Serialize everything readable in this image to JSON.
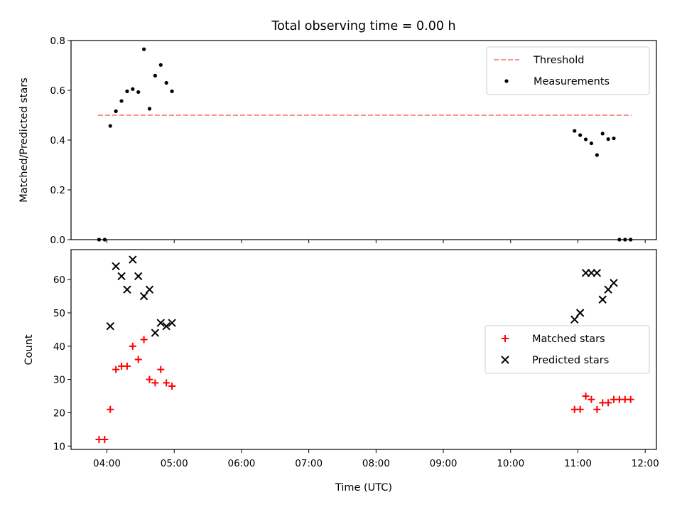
{
  "chart_data": [
    {
      "type": "scatter",
      "title": "Total observing time = 0.00 h",
      "ylabel": "Matched/Predicted stars",
      "xlim": [
        "03:28",
        "12:10"
      ],
      "ylim": [
        0,
        0.8
      ],
      "yticks": [
        0.0,
        0.2,
        0.4,
        0.6,
        0.8
      ],
      "ytick_labels": [
        "0.0",
        "0.2",
        "0.4",
        "0.6",
        "0.8"
      ],
      "legend_position": "top-right",
      "threshold": {
        "name": "Threshold",
        "value": 0.5,
        "x_range": [
          "03:52",
          "11:48"
        ],
        "color": "#ff8080",
        "style": "dashed"
      },
      "series": [
        {
          "name": "Measurements",
          "color": "#000000",
          "marker": "dot",
          "points": [
            [
              "03:53",
              0.0
            ],
            [
              "03:58",
              0.0
            ],
            [
              "04:03",
              0.457
            ],
            [
              "04:08",
              0.516
            ],
            [
              "04:13",
              0.557
            ],
            [
              "04:18",
              0.596
            ],
            [
              "04:23",
              0.605
            ],
            [
              "04:28",
              0.593
            ],
            [
              "04:33",
              0.765
            ],
            [
              "04:38",
              0.526
            ],
            [
              "04:43",
              0.659
            ],
            [
              "04:48",
              0.702
            ],
            [
              "04:53",
              0.63
            ],
            [
              "04:58",
              0.596
            ],
            [
              "10:57",
              0.437
            ],
            [
              "11:02",
              0.42
            ],
            [
              "11:07",
              0.403
            ],
            [
              "11:12",
              0.387
            ],
            [
              "11:17",
              0.34
            ],
            [
              "11:22",
              0.426
            ],
            [
              "11:27",
              0.404
            ],
            [
              "11:32",
              0.407
            ],
            [
              "11:37",
              0.0
            ],
            [
              "11:42",
              0.0
            ],
            [
              "11:47",
              0.0
            ]
          ]
        }
      ]
    },
    {
      "type": "scatter",
      "xlabel": "Time (UTC)",
      "ylabel": "Count",
      "xlim": [
        "03:28",
        "12:10"
      ],
      "ylim": [
        9,
        69
      ],
      "yticks": [
        10,
        20,
        30,
        40,
        50,
        60
      ],
      "ytick_labels": [
        "10",
        "20",
        "30",
        "40",
        "50",
        "60"
      ],
      "xticks": [
        "04:00",
        "05:00",
        "06:00",
        "07:00",
        "08:00",
        "09:00",
        "10:00",
        "11:00",
        "12:00"
      ],
      "legend_position": "center-right",
      "series": [
        {
          "name": "Matched stars",
          "color": "#ff0000",
          "marker": "plus",
          "points": [
            [
              "03:53",
              12
            ],
            [
              "03:58",
              12
            ],
            [
              "04:03",
              21
            ],
            [
              "04:08",
              33
            ],
            [
              "04:13",
              34
            ],
            [
              "04:18",
              34
            ],
            [
              "04:23",
              40
            ],
            [
              "04:28",
              36
            ],
            [
              "04:33",
              42
            ],
            [
              "04:38",
              30
            ],
            [
              "04:43",
              29
            ],
            [
              "04:48",
              33
            ],
            [
              "04:53",
              29
            ],
            [
              "04:58",
              28
            ],
            [
              "10:57",
              21
            ],
            [
              "11:02",
              21
            ],
            [
              "11:07",
              25
            ],
            [
              "11:12",
              24
            ],
            [
              "11:17",
              21
            ],
            [
              "11:22",
              23
            ],
            [
              "11:27",
              23
            ],
            [
              "11:32",
              24
            ],
            [
              "11:37",
              24
            ],
            [
              "11:42",
              24
            ],
            [
              "11:47",
              24
            ]
          ]
        },
        {
          "name": "Predicted stars",
          "color": "#000000",
          "marker": "x",
          "points": [
            [
              "04:03",
              46
            ],
            [
              "04:08",
              64
            ],
            [
              "04:13",
              61
            ],
            [
              "04:18",
              57
            ],
            [
              "04:23",
              66
            ],
            [
              "04:28",
              61
            ],
            [
              "04:33",
              55
            ],
            [
              "04:38",
              57
            ],
            [
              "04:43",
              44
            ],
            [
              "04:48",
              47
            ],
            [
              "04:53",
              46
            ],
            [
              "04:58",
              47
            ],
            [
              "10:57",
              48
            ],
            [
              "11:02",
              50
            ],
            [
              "11:07",
              62
            ],
            [
              "11:12",
              62
            ],
            [
              "11:17",
              62
            ],
            [
              "11:22",
              54
            ],
            [
              "11:27",
              57
            ],
            [
              "11:32",
              59
            ]
          ]
        }
      ]
    }
  ]
}
